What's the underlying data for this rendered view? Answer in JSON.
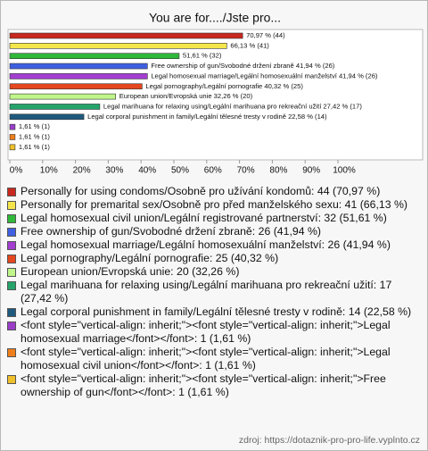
{
  "chart_data": {
    "type": "bar",
    "orientation": "horizontal",
    "title": "You are for..../Jste pro...",
    "categories": [
      "Personally for using condoms/Osobně pro užívání kondomů: 44 (70,97 %)",
      "Personally for premarital sex/Osobně pro před manželského sexu: 41 (66,13 %)",
      "Legal homosexual civil union/Legální registrované partnerství: 32 (51,61 %)",
      "Free ownership of gun/Svobodné držení zbraně: 26 (41,94 %)",
      "Legal homosexual marriage/Legální homosexuální manželství: 26 (41,94 %)",
      "Legal pornography/Legální pornografie: 25 (40,32 %)",
      "European union/Evropská unie: 20 (32,26 %)",
      "Legal marihuana for relaxing using/Legální marihuana pro rekreační užití: 17 (27,42 %)",
      "Legal corporal punishment in family/Legální tělesné tresty v rodině: 14 (22,58 %)",
      "<font style=\"vertical-align: inherit;\"><font style=\"vertical-align: inherit;\">Legal homosexual marriage</font></font>: 1 (1,61 %)",
      "<font style=\"vertical-align: inherit;\"><font style=\"vertical-align: inherit;\">Legal homosexual civil union</font></font>: 1 (1,61 %)",
      "<font style=\"vertical-align: inherit;\"><font style=\"vertical-align: inherit;\">Free ownership of gun</font></font>: 1 (1,61 %)"
    ],
    "values": [
      70.97,
      66.13,
      51.61,
      41.94,
      41.94,
      40.32,
      32.26,
      27.42,
      22.58,
      1.61,
      1.61,
      1.61
    ],
    "value_labels": [
      "70,97 % (44)",
      "66,13 % (41)",
      "51,61 % (32)",
      "Free ownership of gun/Svobodné držení zbraně 41,94 % (26)",
      "Legal homosexual marriage/Legální homosexuální manželství 41,94 % (26)",
      "Legal pornography/Legální pornografie 40,32 % (25)",
      "European union/Evropská unie 32,26 % (20)",
      "Legal marihuana for relaxing using/Legální marihuana pro rekreační užití 27,42 % (17)",
      "Legal corporal punishment in family/Legální tělesné tresty v rodině 22,58 % (14)",
      "1,61 % (1)",
      "1,61 % (1)",
      "1,61 % (1)"
    ],
    "colors": [
      "#c8281e",
      "#f4e64a",
      "#2fb83a",
      "#3f5fe0",
      "#a23ed0",
      "#e5471f",
      "#bff58a",
      "#25a46a",
      "#1f5a7e",
      "#9a3ec8",
      "#ef7e1c",
      "#efc02a"
    ],
    "xlim": [
      0,
      100
    ],
    "xticks": [
      {
        "value": 0,
        "label": "0%"
      },
      {
        "value": 10,
        "label": "10%"
      },
      {
        "value": 20,
        "label": "20%"
      },
      {
        "value": 30,
        "label": "30%"
      },
      {
        "value": 40,
        "label": "40%"
      },
      {
        "value": 50,
        "label": "50%"
      },
      {
        "value": 60,
        "label": "60%"
      },
      {
        "value": 70,
        "label": "70%"
      },
      {
        "value": 80,
        "label": "80%"
      },
      {
        "value": 90,
        "label": "90%"
      },
      {
        "value": 100,
        "label": "100%"
      }
    ],
    "source": "zdroj: https://dotaznik-pro-pro-life.vyplnto.cz"
  }
}
